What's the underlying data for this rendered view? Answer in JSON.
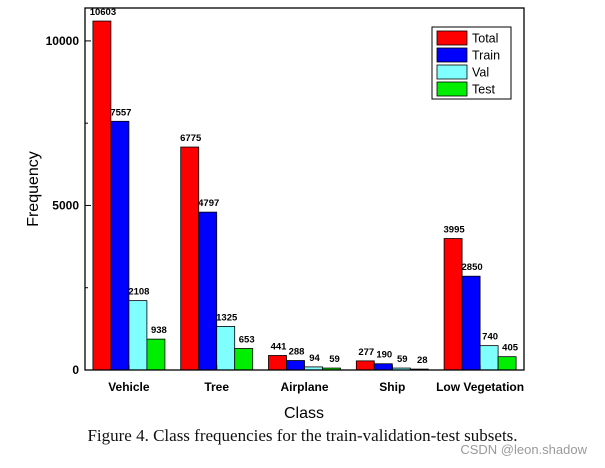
{
  "chart_data": {
    "type": "bar",
    "categories": [
      "Vehicle",
      "Tree",
      "Airplane",
      "Ship",
      "Low Vegetation"
    ],
    "series": [
      {
        "name": "Total",
        "values": [
          10603,
          6775,
          441,
          277,
          3995
        ],
        "color": "#ff0000"
      },
      {
        "name": "Train",
        "values": [
          7557,
          4797,
          288,
          190,
          2850
        ],
        "color": "#0000ff"
      },
      {
        "name": "Val",
        "values": [
          2108,
          1325,
          94,
          59,
          740
        ],
        "color": "#80ffff"
      },
      {
        "name": "Test",
        "values": [
          938,
          653,
          59,
          28,
          405
        ],
        "color": "#00ee00"
      }
    ],
    "xlabel": "Class",
    "ylabel": "Frequency",
    "ylim": [
      0,
      11000
    ],
    "yticks": [
      0,
      5000,
      10000
    ],
    "legend_position": "top-right",
    "grid": false
  },
  "caption": "Figure 4. Class frequencies for the train-validation-test subsets.",
  "watermark": "CSDN @leon.shadow"
}
